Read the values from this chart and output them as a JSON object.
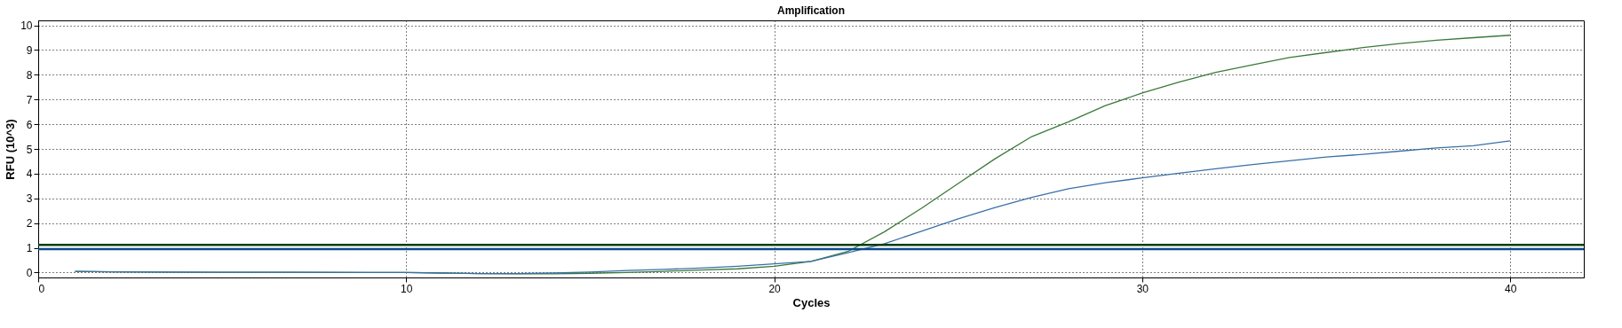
{
  "chart_data": {
    "type": "line",
    "title": "Amplification",
    "xlabel": "Cycles",
    "ylabel": "RFU (10^3)",
    "x": [
      1,
      2,
      3,
      4,
      5,
      6,
      7,
      8,
      9,
      10,
      11,
      12,
      13,
      14,
      15,
      16,
      17,
      18,
      19,
      20,
      21,
      22,
      23,
      24,
      25,
      26,
      27,
      28,
      29,
      30,
      31,
      32,
      33,
      34,
      35,
      36,
      37,
      38,
      39,
      40
    ],
    "series": [
      {
        "color": "#3a7a3a",
        "values": [
          0.05,
          0.03,
          0.02,
          0.01,
          0.01,
          0.01,
          0.01,
          0.0,
          0.0,
          0.0,
          -0.02,
          -0.04,
          -0.05,
          -0.05,
          -0.03,
          0.0,
          0.05,
          0.1,
          0.15,
          0.25,
          0.45,
          0.85,
          1.65,
          2.6,
          3.6,
          4.6,
          5.5,
          6.1,
          6.75,
          7.26,
          7.7,
          8.1,
          8.4,
          8.7,
          8.9,
          9.1,
          9.26,
          9.4,
          9.5,
          9.6
        ]
      },
      {
        "color": "#3a70a8",
        "values": [
          0.05,
          0.03,
          0.02,
          0.02,
          0.01,
          0.01,
          0.01,
          0.01,
          0.0,
          0.0,
          -0.02,
          -0.04,
          -0.04,
          -0.02,
          0.02,
          0.08,
          0.13,
          0.18,
          0.25,
          0.35,
          0.45,
          0.8,
          1.17,
          1.67,
          2.17,
          2.63,
          3.04,
          3.39,
          3.63,
          3.83,
          4.02,
          4.2,
          4.37,
          4.52,
          4.67,
          4.78,
          4.91,
          5.04,
          5.13,
          5.33
        ]
      }
    ],
    "xlim": [
      0,
      42
    ],
    "xticks": [
      0,
      10,
      20,
      30,
      40
    ],
    "ylim": [
      -0.2,
      10.2
    ],
    "yticks": [
      0,
      1,
      2,
      3,
      4,
      5,
      6,
      7,
      8,
      9,
      10
    ],
    "grid": true,
    "ref_lines": [
      {
        "axis": "y",
        "value": 1.12,
        "color": "#0b3d0b"
      },
      {
        "axis": "y",
        "value": 0.95,
        "color": "#0b4a8c"
      }
    ]
  }
}
